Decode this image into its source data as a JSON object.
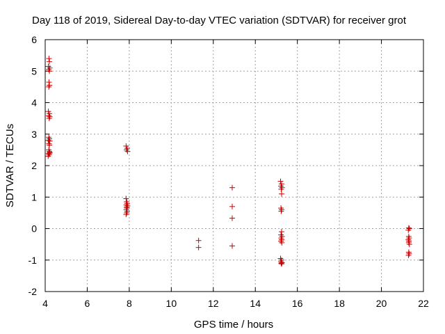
{
  "chart_data": {
    "type": "scatter",
    "title": "Day 118 of 2019, Sidereal Day-to-day VTEC variation (SDTVAR) for receiver grot",
    "xlabel": "GPS time / hours",
    "ylabel": "SDTVAR / TECUs",
    "xlim": [
      4,
      22
    ],
    "ylim": [
      -2,
      6
    ],
    "xticks": [
      4,
      6,
      8,
      10,
      12,
      14,
      16,
      18,
      20,
      22
    ],
    "yticks": [
      -2,
      -1,
      0,
      1,
      2,
      3,
      4,
      5,
      6
    ],
    "grid": true,
    "marker": "+",
    "color": "#cc0000",
    "series": [
      {
        "name": "SDTVAR",
        "points": [
          [
            4.18,
            5.4
          ],
          [
            4.2,
            5.3
          ],
          [
            4.15,
            5.15
          ],
          [
            4.22,
            5.1
          ],
          [
            4.17,
            5.05
          ],
          [
            4.2,
            5.0
          ],
          [
            4.18,
            4.65
          ],
          [
            4.2,
            4.55
          ],
          [
            4.17,
            4.5
          ],
          [
            4.15,
            3.72
          ],
          [
            4.2,
            3.65
          ],
          [
            4.17,
            3.58
          ],
          [
            4.22,
            3.55
          ],
          [
            4.19,
            3.5
          ],
          [
            4.17,
            2.9
          ],
          [
            4.2,
            2.85
          ],
          [
            4.15,
            2.8
          ],
          [
            4.22,
            2.78
          ],
          [
            4.18,
            2.7
          ],
          [
            4.2,
            2.65
          ],
          [
            4.17,
            2.5
          ],
          [
            4.2,
            2.45
          ],
          [
            4.22,
            2.4
          ],
          [
            4.16,
            2.38
          ],
          [
            4.19,
            2.35
          ],
          [
            4.21,
            2.42
          ],
          [
            4.14,
            2.3
          ],
          [
            7.85,
            2.62
          ],
          [
            7.9,
            2.55
          ],
          [
            7.87,
            2.5
          ],
          [
            7.92,
            2.45
          ],
          [
            7.85,
            0.95
          ],
          [
            7.88,
            0.85
          ],
          [
            7.9,
            0.8
          ],
          [
            7.86,
            0.75
          ],
          [
            7.92,
            0.72
          ],
          [
            7.87,
            0.68
          ],
          [
            7.89,
            0.65
          ],
          [
            7.86,
            0.6
          ],
          [
            7.9,
            0.55
          ],
          [
            7.88,
            0.5
          ],
          [
            7.85,
            0.45
          ],
          [
            11.3,
            -0.38
          ],
          [
            11.3,
            -0.6
          ],
          [
            12.9,
            1.3
          ],
          [
            12.9,
            0.7
          ],
          [
            12.9,
            0.33
          ],
          [
            12.9,
            -0.55
          ],
          [
            15.2,
            1.5
          ],
          [
            15.25,
            1.42
          ],
          [
            15.22,
            1.35
          ],
          [
            15.27,
            1.3
          ],
          [
            15.23,
            1.25
          ],
          [
            15.25,
            1.1
          ],
          [
            15.22,
            0.65
          ],
          [
            15.25,
            0.6
          ],
          [
            15.23,
            0.55
          ],
          [
            15.25,
            -0.1
          ],
          [
            15.22,
            -0.2
          ],
          [
            15.27,
            -0.25
          ],
          [
            15.23,
            -0.3
          ],
          [
            15.25,
            -0.35
          ],
          [
            15.22,
            -0.4
          ],
          [
            15.26,
            -0.45
          ],
          [
            15.2,
            -0.95
          ],
          [
            15.25,
            -1.0
          ],
          [
            15.22,
            -1.05
          ],
          [
            15.27,
            -1.08
          ],
          [
            15.23,
            -1.1
          ],
          [
            15.25,
            -1.12
          ],
          [
            21.3,
            0.02
          ],
          [
            21.33,
            0.0
          ],
          [
            21.28,
            -0.05
          ],
          [
            21.3,
            -0.25
          ],
          [
            21.32,
            -0.3
          ],
          [
            21.28,
            -0.35
          ],
          [
            21.31,
            -0.4
          ],
          [
            21.3,
            -0.45
          ],
          [
            21.33,
            -0.5
          ],
          [
            21.3,
            -0.75
          ],
          [
            21.32,
            -0.8
          ],
          [
            21.29,
            -0.85
          ]
        ]
      }
    ]
  }
}
